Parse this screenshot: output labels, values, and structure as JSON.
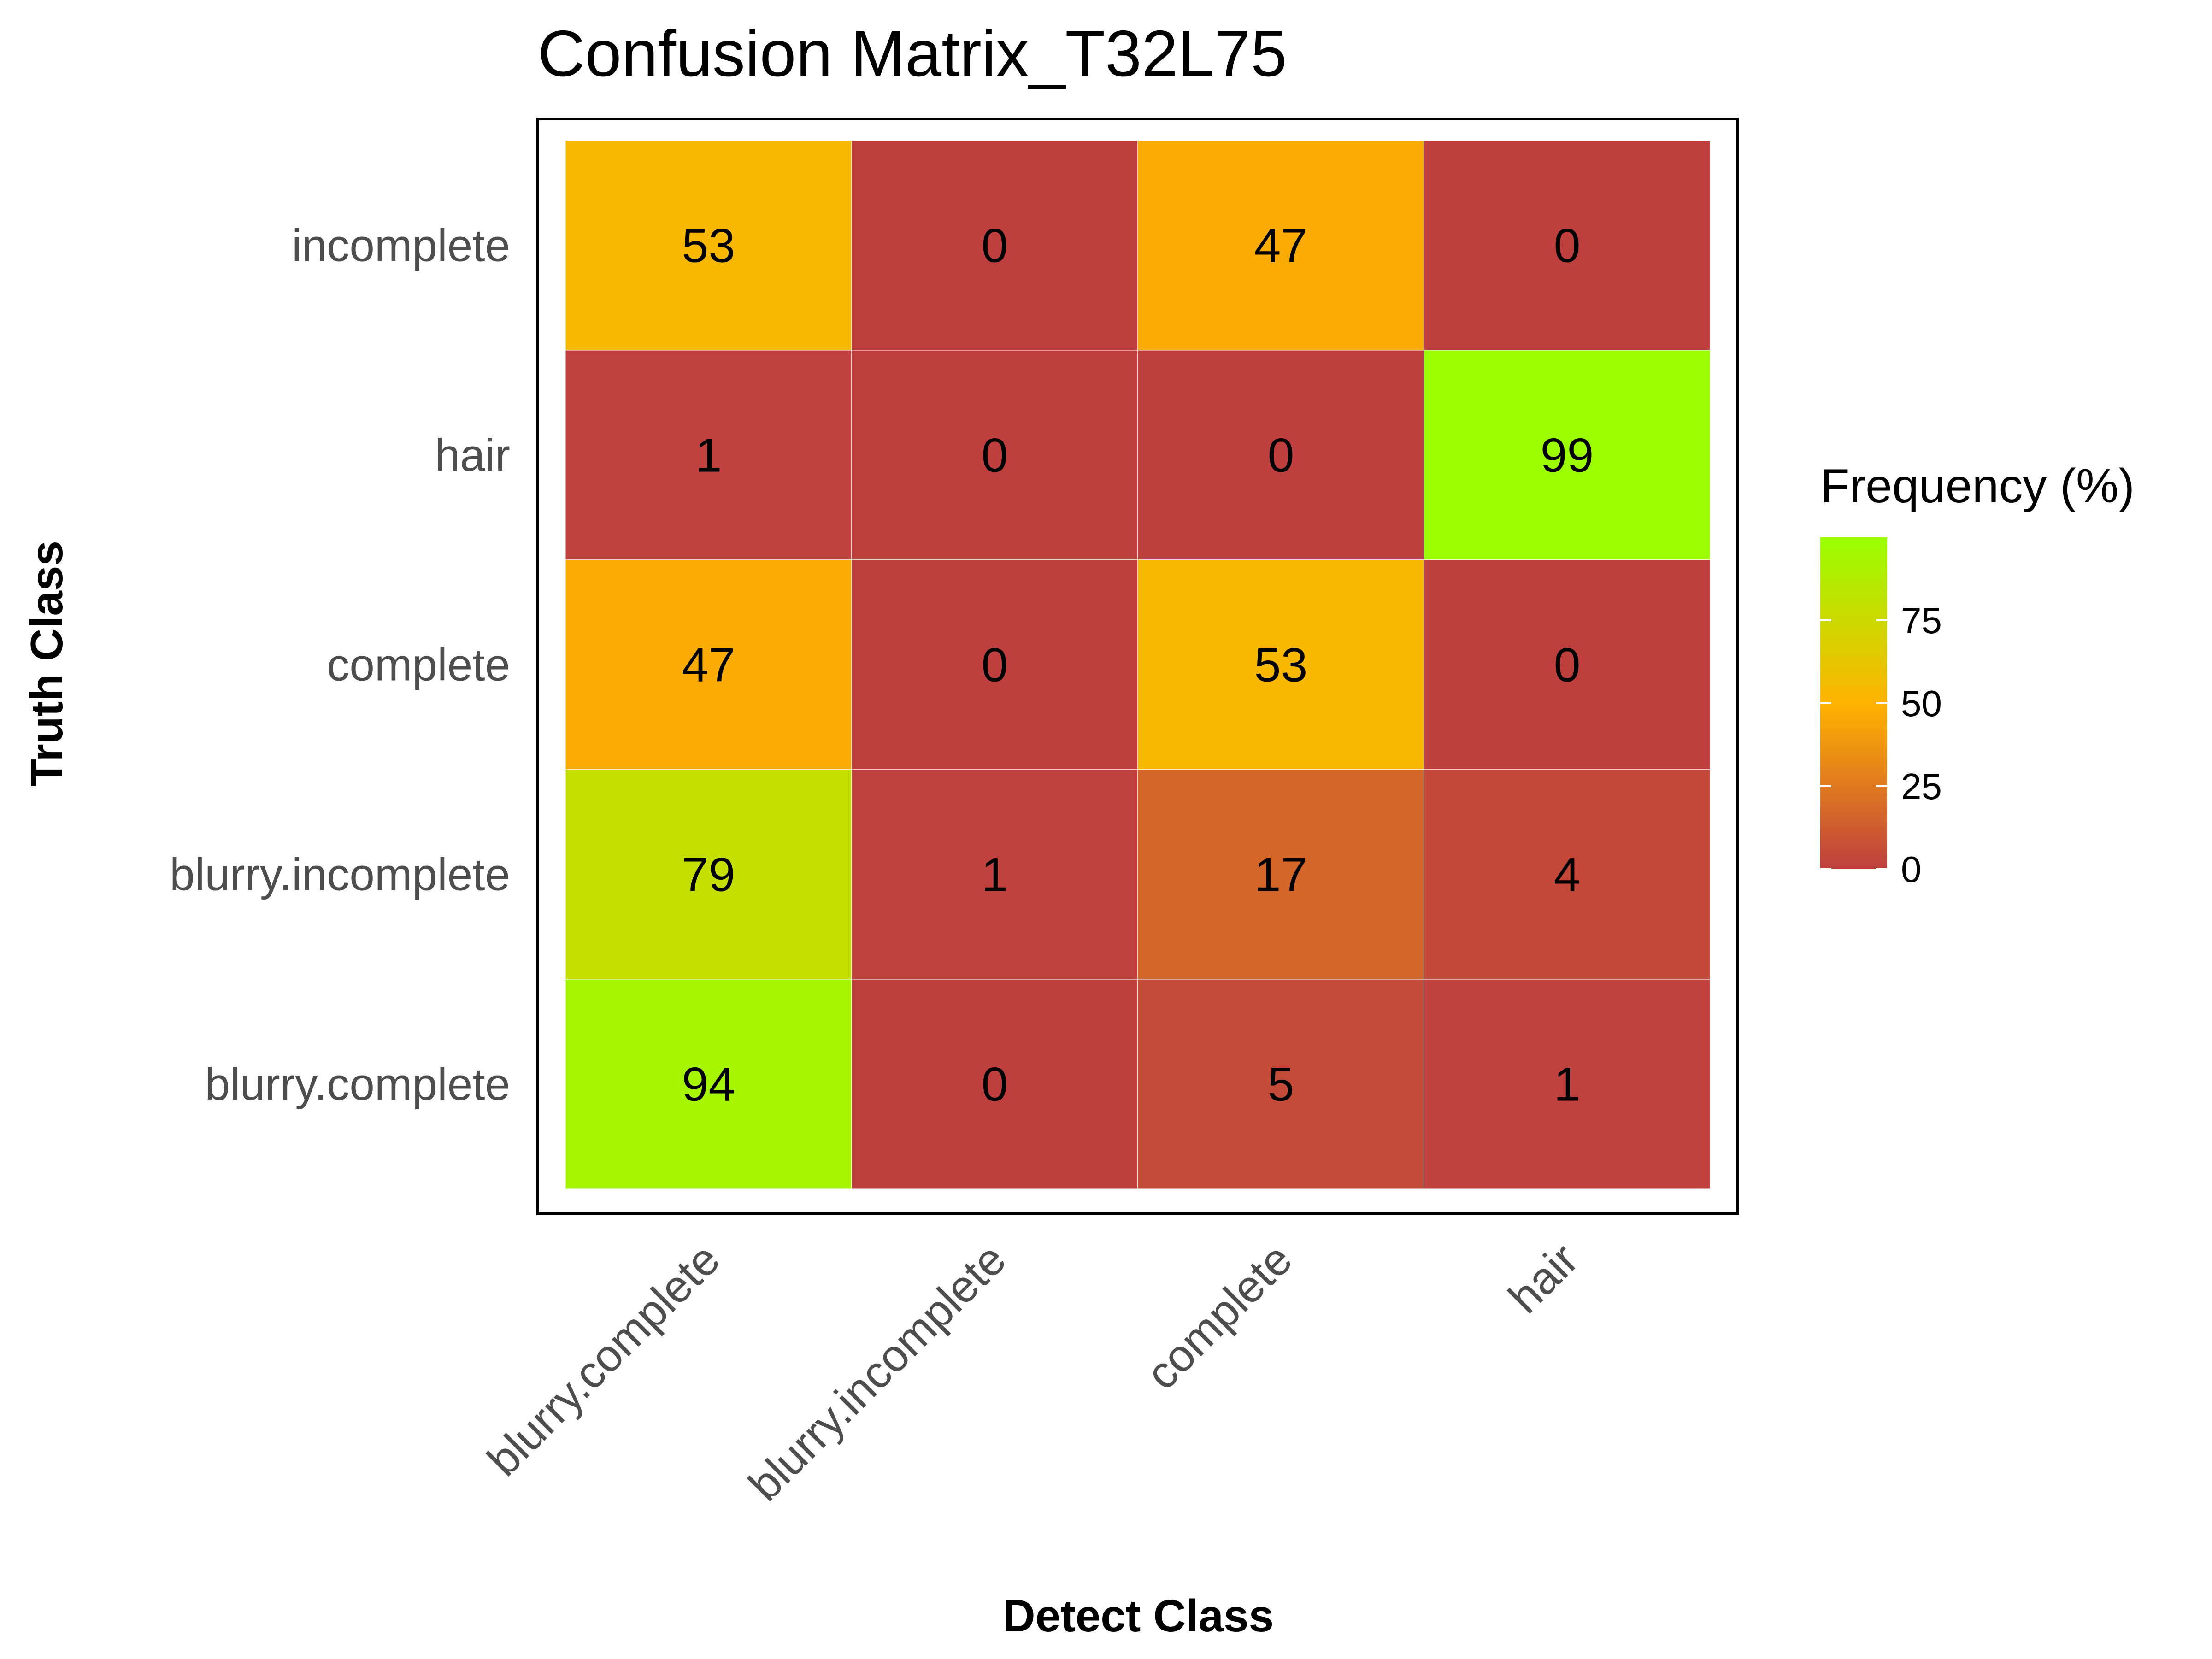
{
  "chart_data": {
    "type": "heatmap",
    "title": "Confusion Matrix_T32L75",
    "xlabel": "Detect Class",
    "ylabel": "Truth Class",
    "x_categories": [
      "blurry.complete",
      "blurry.incomplete",
      "complete",
      "hair"
    ],
    "y_categories": [
      "incomplete",
      "hair",
      "complete",
      "blurry.incomplete",
      "blurry.complete"
    ],
    "values": [
      [
        53,
        0,
        47,
        0
      ],
      [
        1,
        0,
        0,
        99
      ],
      [
        47,
        0,
        53,
        0
      ],
      [
        79,
        1,
        17,
        4
      ],
      [
        94,
        0,
        5,
        1
      ]
    ],
    "legend": {
      "title": "Frequency (%)",
      "ticks": [
        0,
        25,
        50,
        75
      ],
      "range": [
        0,
        100
      ],
      "placement": "right"
    },
    "color_scale": [
      "#bf3f3f",
      "#ffb300",
      "#99ff00"
    ]
  }
}
